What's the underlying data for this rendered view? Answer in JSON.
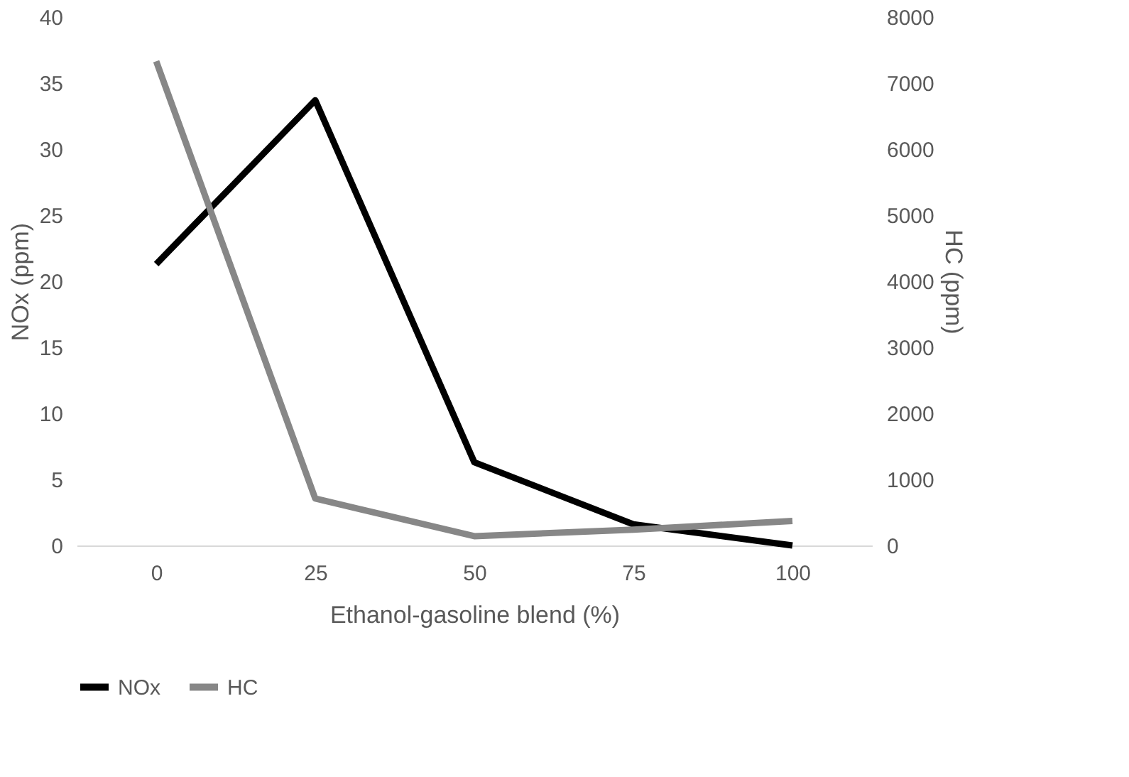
{
  "chart_data": {
    "type": "line",
    "xlabel": "Ethanol-gasoline blend (%)",
    "ylabel": "NOx (ppm)",
    "y2label": "HC (ppm)",
    "categories": [
      "0",
      "25",
      "50",
      "75",
      "100"
    ],
    "series": [
      {
        "name": "NOx",
        "color": "#000000",
        "values": [
          21.3,
          33.7,
          6.3,
          1.6,
          0
        ]
      },
      {
        "name": "HC",
        "color": "#878787",
        "values": [
          7330,
          710,
          140,
          240,
          370
        ],
        "axis": "y2"
      }
    ],
    "ylim": [
      0,
      40
    ],
    "yticks": [
      0,
      5,
      10,
      15,
      20,
      25,
      30,
      35,
      40
    ],
    "y2lim": [
      0,
      8000
    ],
    "y2ticks": [
      0,
      1000,
      2000,
      3000,
      4000,
      5000,
      6000,
      7000,
      8000
    ],
    "grid": false,
    "legend": "bottom",
    "marker": "none",
    "line_style": "solid"
  }
}
